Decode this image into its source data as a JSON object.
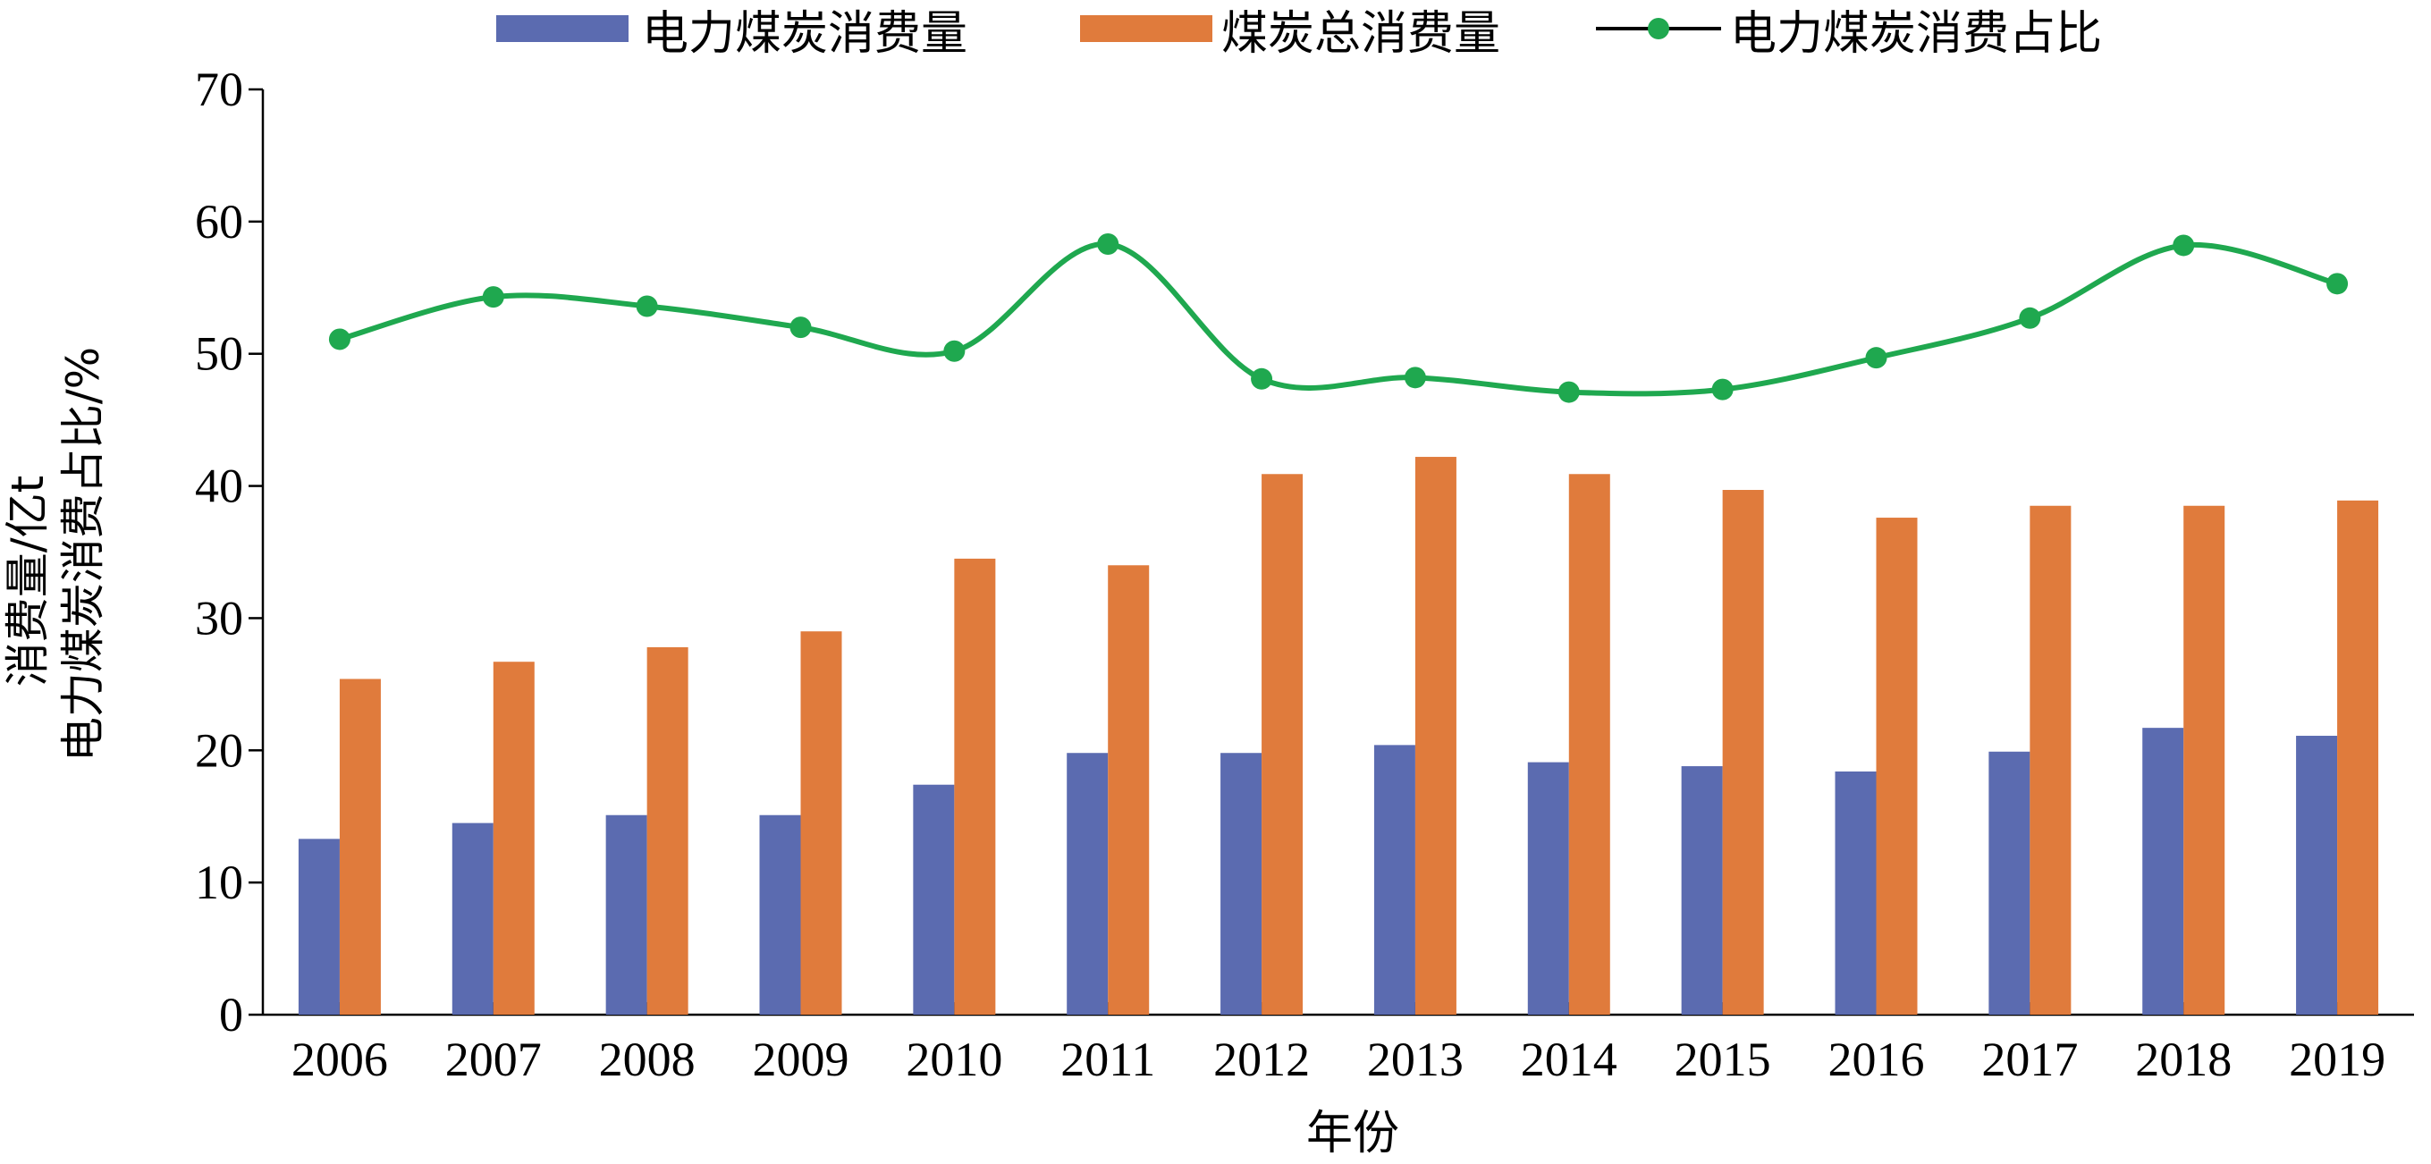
{
  "chart_data": {
    "type": "bar",
    "categories": [
      "2006",
      "2007",
      "2008",
      "2009",
      "2010",
      "2011",
      "2012",
      "2013",
      "2014",
      "2015",
      "2016",
      "2017",
      "2018",
      "2019"
    ],
    "series": [
      {
        "name": "电力煤炭消费量",
        "kind": "bar",
        "color": "#5b6bb0",
        "values": [
          13.3,
          14.5,
          15.1,
          15.1,
          17.4,
          19.8,
          19.8,
          20.4,
          19.1,
          18.8,
          18.4,
          19.9,
          21.7,
          21.1
        ]
      },
      {
        "name": "煤炭总消费量",
        "kind": "bar",
        "color": "#e07b3c",
        "values": [
          25.4,
          26.7,
          27.8,
          29.0,
          34.5,
          34.0,
          40.9,
          42.2,
          40.9,
          39.7,
          37.6,
          38.5,
          38.5,
          38.9
        ]
      },
      {
        "name": "电力煤炭消费占比",
        "kind": "line",
        "smooth": true,
        "color": "#1fa84f",
        "values": [
          51.1,
          54.3,
          53.6,
          52.0,
          50.2,
          58.3,
          48.1,
          48.2,
          47.1,
          47.3,
          49.7,
          52.7,
          58.2,
          55.3
        ]
      }
    ],
    "xlabel": "年份",
    "ylabel_lines": [
      "消费量/亿t",
      "电力煤炭消费占比/%"
    ],
    "ylim": [
      0,
      70
    ],
    "yticks": [
      "0",
      "10",
      "20",
      "30",
      "40",
      "50",
      "60",
      "70"
    ],
    "grid": false,
    "legend_position": "top"
  }
}
